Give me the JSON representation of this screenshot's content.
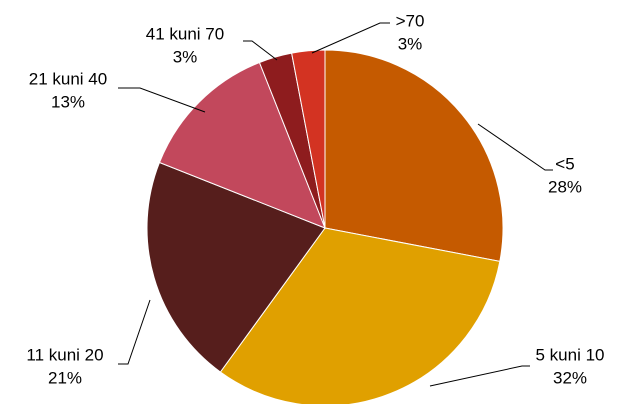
{
  "chart_data": {
    "type": "pie",
    "categories": [
      "<5",
      "5 kuni 10",
      "11 kuni 20",
      "21 kuni 40",
      "41 kuni 70",
      ">70"
    ],
    "values": [
      28,
      32,
      21,
      13,
      3,
      3
    ],
    "value_labels": [
      "28%",
      "32%",
      "21%",
      "13%",
      "3%",
      "3%"
    ],
    "colors": [
      "#C55A00",
      "#E0A000",
      "#561E1C",
      "#C2485C",
      "#8E1C1E",
      "#D33322"
    ]
  }
}
